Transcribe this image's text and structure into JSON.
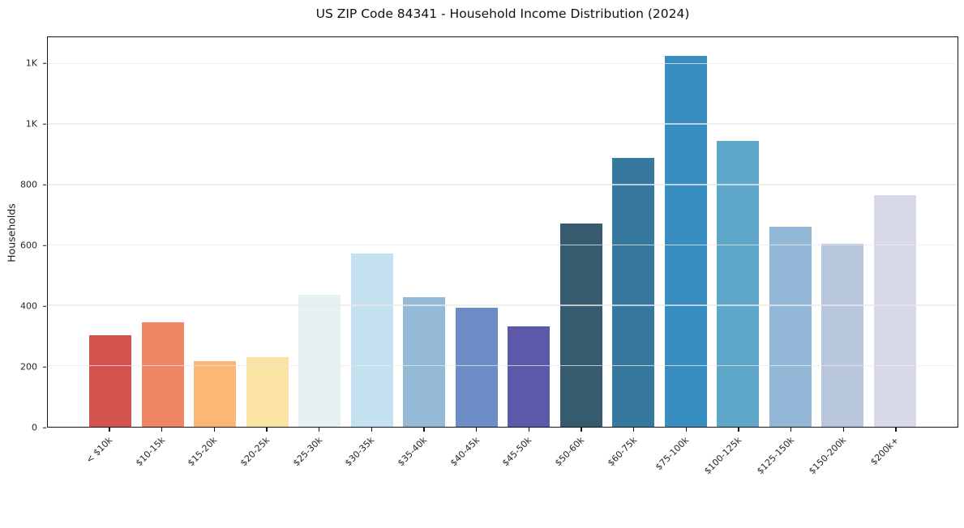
{
  "chart_data": {
    "type": "bar",
    "title": "US ZIP Code 84341 - Household Income Distribution (2024)",
    "xlabel": "",
    "ylabel": "Households",
    "categories": [
      "< $10k",
      "$10-15k",
      "$15-20k",
      "$20-25k",
      "$25-30k",
      "$30-35k",
      "$35-40k",
      "$40-45k",
      "$45-50k",
      "$50-60k",
      "$60-75k",
      "$75-100k",
      "$100-125k",
      "$125-150k",
      "$150-200k",
      "$200k+"
    ],
    "values": [
      303,
      345,
      218,
      231,
      437,
      573,
      429,
      394,
      331,
      672,
      890,
      1228,
      946,
      661,
      605,
      766
    ],
    "bar_colors": [
      "#d4534e",
      "#f08565",
      "#fab874",
      "#fbe3a3",
      "#e7f1f3",
      "#c3e1ee",
      "#94bad8",
      "#6b8cc5",
      "#5b59a8",
      "#365b6e",
      "#36789e",
      "#398ec1",
      "#5fa7c8",
      "#93b7d6",
      "#b9c7dc",
      "#d7d9e6"
    ],
    "ylim": [
      0,
      1289
    ],
    "yticks": [
      {
        "value": 0,
        "label": "0"
      },
      {
        "value": 200,
        "label": "200"
      },
      {
        "value": 400,
        "label": "400"
      },
      {
        "value": 600,
        "label": "600"
      },
      {
        "value": 800,
        "label": "800"
      },
      {
        "value": 1000,
        "label": "1K"
      },
      {
        "value": 1200,
        "label": "1K"
      }
    ],
    "grid": true,
    "legend": "none",
    "background_color": "#ffffff",
    "spine_color": "#141414",
    "grid_color": "#e9e9e9",
    "tick_label_color": "#262626"
  }
}
